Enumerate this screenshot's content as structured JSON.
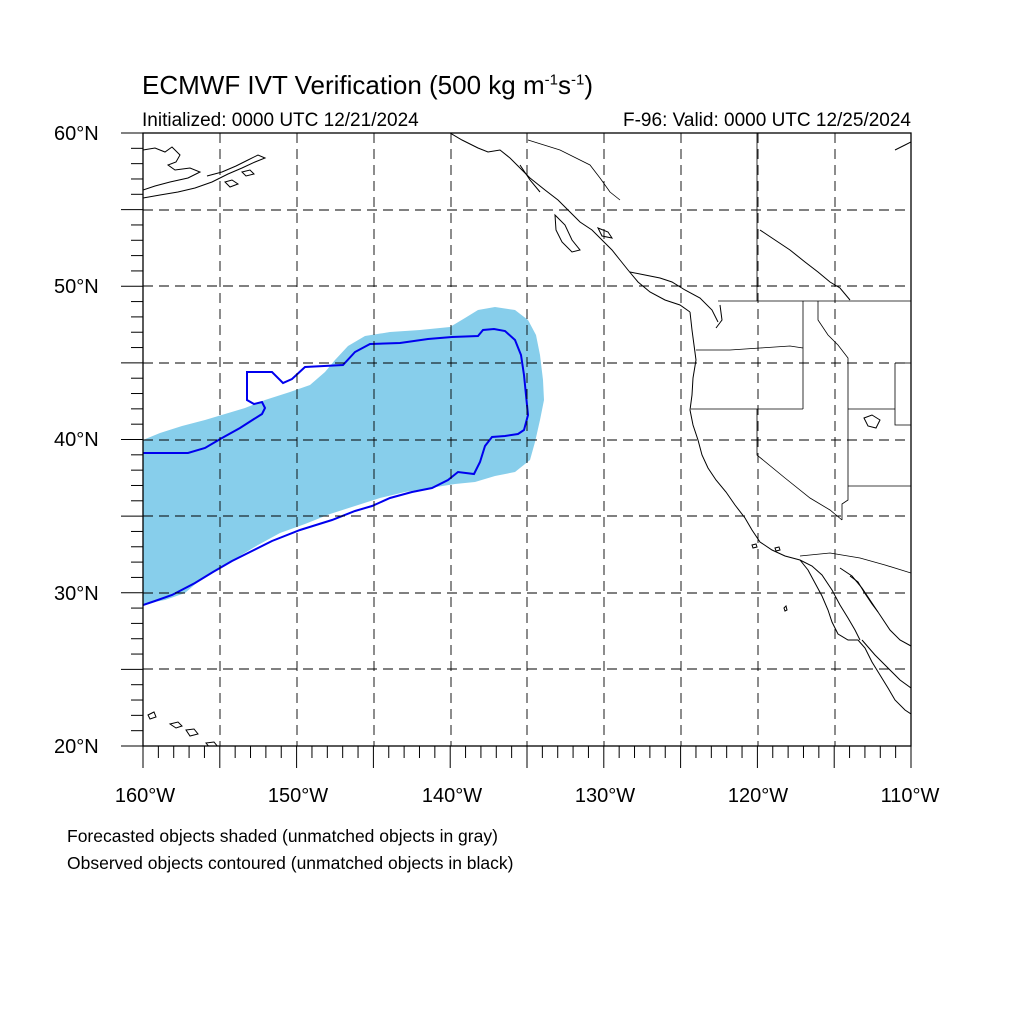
{
  "title": {
    "main": "ECMWF IVT Verification (500 kg m",
    "sup1": "-1",
    "mid": "s",
    "sup2": "-1",
    "end": ")"
  },
  "subtitle_left": "Initialized: 0000 UTC 12/21/2024",
  "subtitle_right": "F-96: Valid: 0000 UTC 12/25/2024",
  "lat_labels": [
    {
      "text": "60°N",
      "value": 60
    },
    {
      "text": "50°N",
      "value": 50
    },
    {
      "text": "40°N",
      "value": 40
    },
    {
      "text": "30°N",
      "value": 30
    },
    {
      "text": "20°N",
      "value": 20
    }
  ],
  "lon_labels": [
    {
      "text": "160°W",
      "value": -160
    },
    {
      "text": "150°W",
      "value": -150
    },
    {
      "text": "140°W",
      "value": -140
    },
    {
      "text": "130°W",
      "value": -130
    },
    {
      "text": "120°W",
      "value": -120
    },
    {
      "text": "110°W",
      "value": -110
    }
  ],
  "notes": [
    "Forecasted objects shaded (unmatched objects in gray)",
    "Observed objects contoured (unmatched objects in black)"
  ],
  "colors": {
    "forecast_fill": "#87ceeb",
    "observed_contour": "#0000ee",
    "grid": "#000000"
  }
}
